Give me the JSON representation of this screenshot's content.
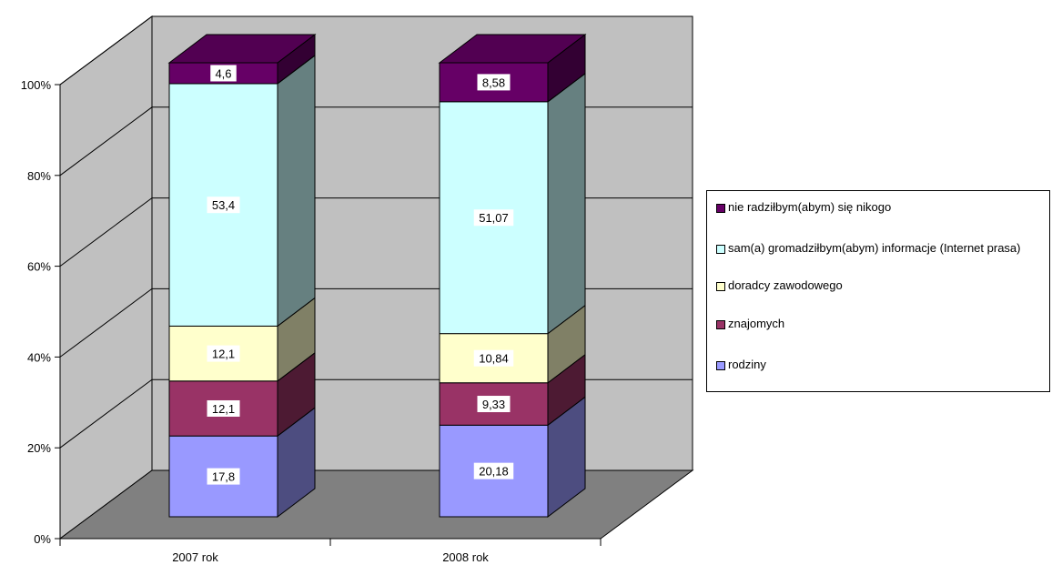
{
  "chart_data": {
    "type": "bar",
    "stacked": true,
    "percent_stacked": true,
    "three_d": true,
    "categories": [
      "2007 rok",
      "2008 rok"
    ],
    "series": [
      {
        "name": "rodziny",
        "values": [
          17.8,
          20.18
        ],
        "color": "#9999ff"
      },
      {
        "name": "znajomych",
        "values": [
          12.1,
          9.33
        ],
        "color": "#993366"
      },
      {
        "name": "doradcy zawodowego",
        "values": [
          12.1,
          10.84
        ],
        "color": "#ffffcc"
      },
      {
        "name": "sam(a) gromadziłbym(abym) informacje (Internet prasa)",
        "values": [
          53.4,
          51.07
        ],
        "color": "#ccffff"
      },
      {
        "name": "nie radziłbym(abym) się nikogo",
        "values": [
          4.6,
          8.58
        ],
        "color": "#660066"
      }
    ],
    "data_labels": [
      [
        "17,8",
        "20,18"
      ],
      [
        "12,1",
        "9,33"
      ],
      [
        "12,1",
        "10,84"
      ],
      [
        "53,4",
        "51,07"
      ],
      [
        "4,6",
        "8,58"
      ]
    ],
    "y_ticks": [
      "0%",
      "20%",
      "40%",
      "60%",
      "80%",
      "100%"
    ],
    "ylim": [
      0,
      100
    ],
    "grid": true,
    "legend_position": "right",
    "colors": {
      "wall": "#c0c0c0",
      "floor": "#808080"
    }
  }
}
